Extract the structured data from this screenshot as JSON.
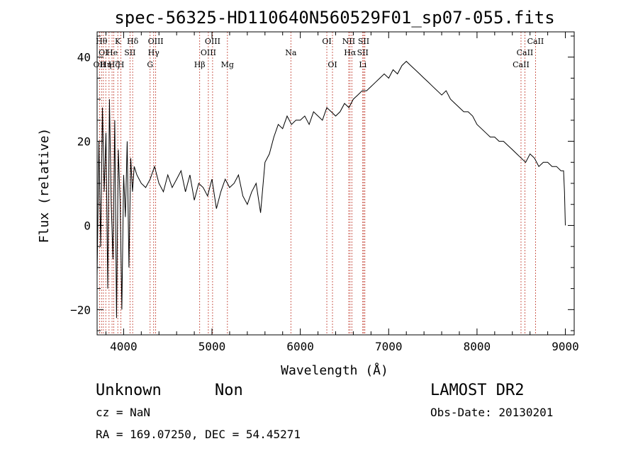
{
  "chart_data": {
    "type": "line",
    "title": "spec-56325-HD110640N560529F01_sp07-055.fits",
    "xlabel": "Wavelength (Å)",
    "ylabel": "Flux (relative)",
    "xlim": [
      3700,
      9100
    ],
    "ylim": [
      -26,
      46
    ],
    "x_ticks": [
      4000,
      5000,
      6000,
      7000,
      8000,
      9000
    ],
    "y_ticks": [
      -20,
      0,
      20,
      40
    ],
    "x_tick_labels": [
      "4000",
      "5000",
      "6000",
      "7000",
      "8000",
      "9000"
    ],
    "y_tick_labels": [
      "−20",
      "0",
      "20",
      "40"
    ],
    "grid": false,
    "line_color": "#000000",
    "marker_color": "#c0392b",
    "series": [
      {
        "x": [
          3700,
          3720,
          3740,
          3760,
          3780,
          3800,
          3820,
          3840,
          3860,
          3880,
          3900,
          3920,
          3940,
          3960,
          3980,
          4000,
          4020,
          4040,
          4060,
          4080,
          4100,
          4120,
          4150,
          4200,
          4250,
          4300,
          4350,
          4400,
          4450,
          4500,
          4550,
          4600,
          4650,
          4700,
          4750,
          4800,
          4850,
          4900,
          4950,
          5000,
          5050,
          5100,
          5150,
          5200,
          5250,
          5300,
          5350,
          5400,
          5450,
          5500,
          5550,
          5600,
          5650,
          5700,
          5750,
          5800,
          5850,
          5900,
          5950,
          6000,
          6050,
          6100,
          6150,
          6200,
          6250,
          6300,
          6350,
          6400,
          6450,
          6500,
          6550,
          6600,
          6650,
          6700,
          6750,
          6800,
          6850,
          6900,
          6950,
          7000,
          7050,
          7100,
          7150,
          7200,
          7250,
          7300,
          7350,
          7400,
          7450,
          7500,
          7550,
          7600,
          7650,
          7700,
          7750,
          7800,
          7850,
          7900,
          7950,
          8000,
          8050,
          8100,
          8150,
          8200,
          8250,
          8300,
          8350,
          8400,
          8450,
          8500,
          8550,
          8600,
          8650,
          8700,
          8750,
          8800,
          8850,
          8900,
          8950,
          8980,
          8990,
          9000
        ],
        "y": [
          -12,
          20,
          -5,
          28,
          8,
          22,
          -15,
          30,
          5,
          -8,
          25,
          -22,
          18,
          6,
          -20,
          12,
          2,
          20,
          -10,
          16,
          8,
          14,
          12,
          10,
          9,
          11,
          14,
          10,
          8,
          12,
          9,
          11,
          13,
          8,
          12,
          6,
          10,
          9,
          7,
          11,
          4,
          8,
          11,
          9,
          10,
          12,
          7,
          5,
          8,
          10,
          3,
          15,
          17,
          21,
          24,
          23,
          26,
          24,
          25,
          25,
          26,
          24,
          27,
          26,
          25,
          28,
          27,
          26,
          27,
          29,
          28,
          30,
          31,
          32,
          32,
          33,
          34,
          35,
          36,
          35,
          37,
          36,
          38,
          39,
          38,
          37,
          36,
          35,
          34,
          33,
          32,
          31,
          32,
          30,
          29,
          28,
          27,
          27,
          26,
          24,
          23,
          22,
          21,
          21,
          20,
          20,
          19,
          18,
          17,
          16,
          15,
          17,
          16,
          14,
          15,
          15,
          14,
          14,
          13,
          13,
          8,
          0
        ]
      }
    ],
    "lines": [
      {
        "wl": 3727,
        "labels": [
          "OII"
        ],
        "rows": [
          3
        ]
      },
      {
        "wl": 3750,
        "labels": [
          "Hθ"
        ],
        "rows": [
          1
        ]
      },
      {
        "wl": 3771,
        "labels": [
          "OI"
        ],
        "rows": [
          2
        ]
      },
      {
        "wl": 3798,
        "labels": [
          "Hη"
        ],
        "rows": [
          3
        ]
      },
      {
        "wl": 3835,
        "labels": [],
        "rows": []
      },
      {
        "wl": 3869,
        "labels": [
          "He"
        ],
        "rows": [
          2
        ]
      },
      {
        "wl": 3889,
        "labels": [
          "Hζ"
        ],
        "rows": [
          3
        ]
      },
      {
        "wl": 3934,
        "labels": [
          "K"
        ],
        "rows": [
          1
        ]
      },
      {
        "wl": 3969,
        "labels": [
          "H"
        ],
        "rows": [
          3
        ]
      },
      {
        "wl": 4072,
        "labels": [
          "SII"
        ],
        "rows": [
          2
        ]
      },
      {
        "wl": 4102,
        "labels": [
          "Hδ"
        ],
        "rows": [
          1
        ]
      },
      {
        "wl": 4300,
        "labels": [
          "G"
        ],
        "rows": [
          3
        ]
      },
      {
        "wl": 4340,
        "labels": [
          "Hγ"
        ],
        "rows": [
          2
        ]
      },
      {
        "wl": 4363,
        "labels": [
          "OIII"
        ],
        "rows": [
          1
        ]
      },
      {
        "wl": 4861,
        "labels": [
          "Hβ"
        ],
        "rows": [
          3
        ]
      },
      {
        "wl": 4959,
        "labels": [
          "OIII"
        ],
        "rows": [
          2
        ]
      },
      {
        "wl": 5007,
        "labels": [
          "OIII"
        ],
        "rows": [
          1
        ]
      },
      {
        "wl": 5175,
        "labels": [
          "Mg"
        ],
        "rows": [
          3
        ]
      },
      {
        "wl": 5893,
        "labels": [
          "Na"
        ],
        "rows": [
          2
        ]
      },
      {
        "wl": 6300,
        "labels": [
          "OI"
        ],
        "rows": [
          1
        ]
      },
      {
        "wl": 6364,
        "labels": [
          "OI"
        ],
        "rows": [
          3
        ]
      },
      {
        "wl": 6548,
        "labels": [
          "NII"
        ],
        "rows": [
          1
        ]
      },
      {
        "wl": 6563,
        "labels": [
          "Hα"
        ],
        "rows": [
          2
        ]
      },
      {
        "wl": 6583,
        "labels": [],
        "rows": []
      },
      {
        "wl": 6707,
        "labels": [
          "Li",
          "SII"
        ],
        "rows": [
          3,
          2
        ]
      },
      {
        "wl": 6717,
        "labels": [
          "SII"
        ],
        "rows": [
          1
        ]
      },
      {
        "wl": 6731,
        "labels": [],
        "rows": []
      },
      {
        "wl": 8498,
        "labels": [
          "CaII"
        ],
        "rows": [
          3
        ]
      },
      {
        "wl": 8542,
        "labels": [
          "CaII"
        ],
        "rows": [
          2
        ]
      },
      {
        "wl": 8662,
        "labels": [
          "CaII"
        ],
        "rows": [
          1
        ]
      }
    ]
  },
  "footer": {
    "object": "Unknown",
    "class": "Non",
    "cz": "cz = NaN",
    "survey": "LAMOST DR2",
    "obs_date": "Obs-Date: 20130201",
    "radec": "RA = 169.07250, DEC =  54.45271"
  }
}
